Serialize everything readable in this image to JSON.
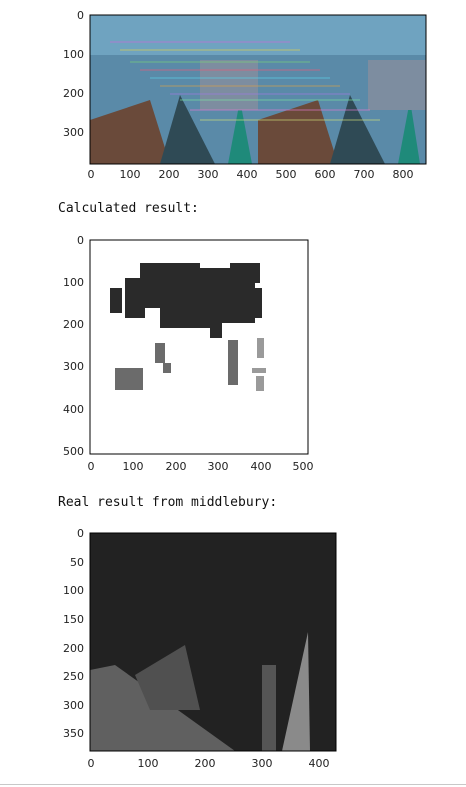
{
  "plot1": {
    "xticks": [
      "0",
      "100",
      "200",
      "300",
      "400",
      "500",
      "600",
      "700",
      "800"
    ],
    "yticks": [
      "0",
      "100",
      "200",
      "300"
    ]
  },
  "calc_label": "Calculated result:",
  "plot2": {
    "xticks": [
      "0",
      "100",
      "200",
      "300",
      "400",
      "500"
    ],
    "yticks": [
      "0",
      "100",
      "200",
      "300",
      "400",
      "500"
    ]
  },
  "real_label": "Real result from middlebury:",
  "plot3": {
    "xticks": [
      "0",
      "100",
      "200",
      "300",
      "400"
    ],
    "yticks": [
      "0",
      "50",
      "100",
      "150",
      "200",
      "250",
      "300",
      "350"
    ]
  },
  "colors": {
    "disparity_dark": "#2a2a2a",
    "disparity_mid": "#6b6b6b",
    "disparity_light": "#9a9a9a",
    "gt_background": "#222222"
  }
}
